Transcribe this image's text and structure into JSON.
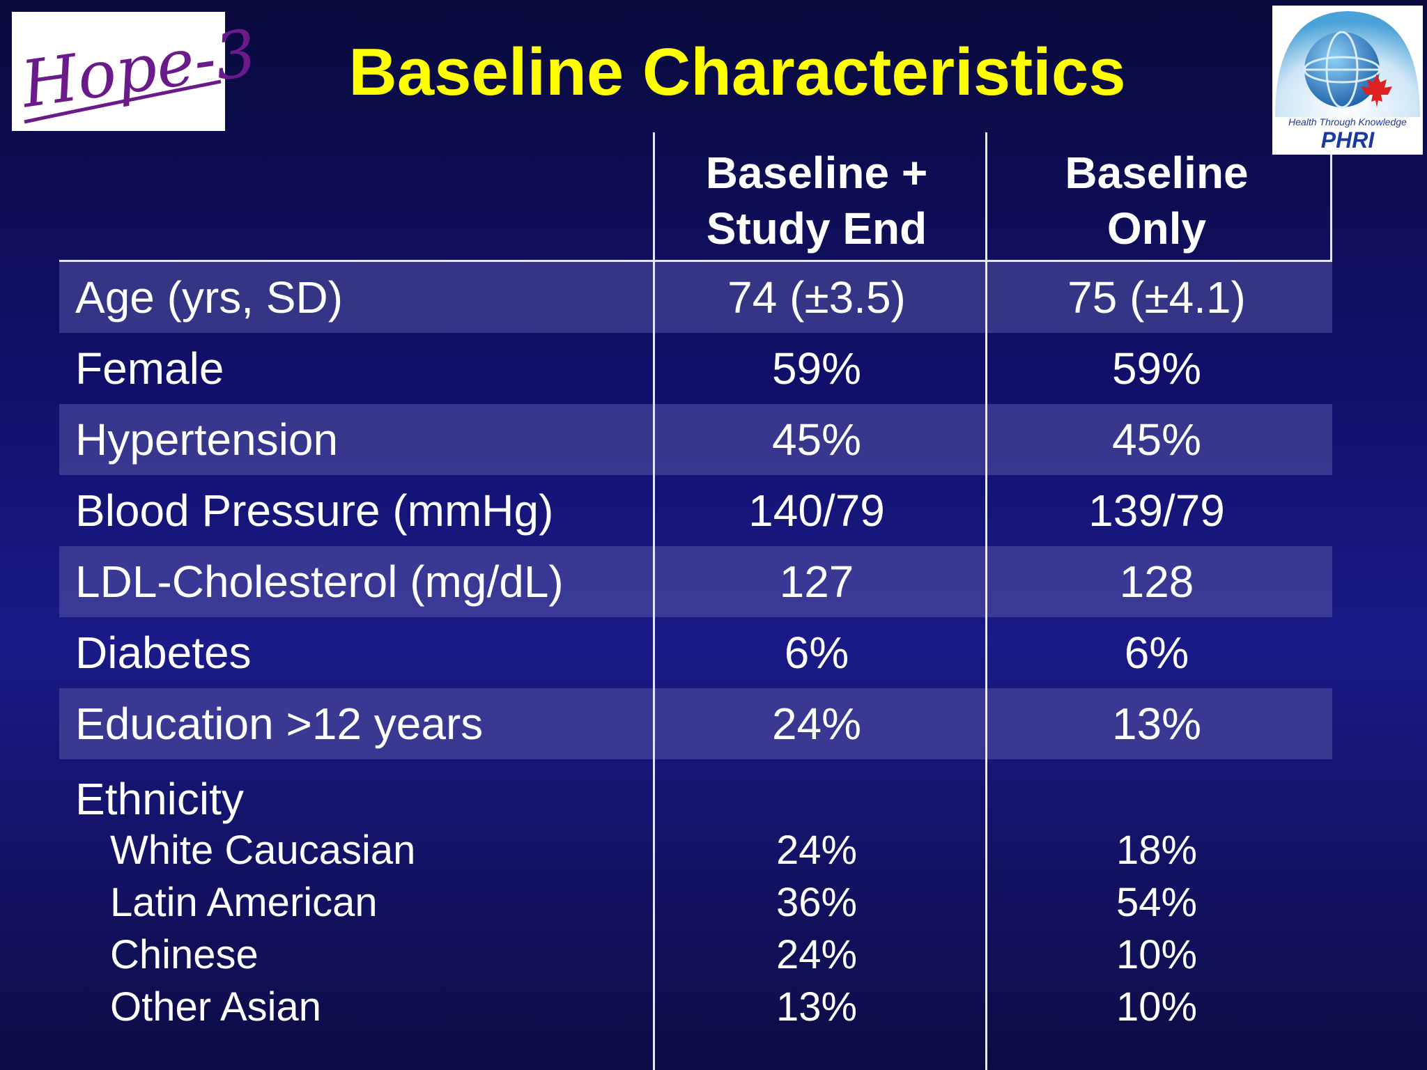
{
  "logo_left": {
    "text": "Hope-3"
  },
  "logo_right": {
    "tagline": "Health Through Knowledge",
    "name": "PHRI"
  },
  "title": "Baseline Characteristics",
  "columns": {
    "col1": {
      "line1": "Baseline +",
      "line2": "Study End"
    },
    "col2": {
      "line1": "Baseline",
      "line2": "Only"
    }
  },
  "rows": [
    {
      "label": "Age (yrs, SD)",
      "col1": "74 (±3.5)",
      "col2": "75 (±4.1)"
    },
    {
      "label": "Female",
      "col1": "59%",
      "col2": "59%"
    },
    {
      "label": "Hypertension",
      "col1": "45%",
      "col2": "45%"
    },
    {
      "label": "Blood Pressure (mmHg)",
      "col1": "140/79",
      "col2": "139/79"
    },
    {
      "label": "LDL-Cholesterol (mg/dL)",
      "col1": "127",
      "col2": "128"
    },
    {
      "label": "Diabetes",
      "col1": "6%",
      "col2": "6%"
    },
    {
      "label": "Education >12 years",
      "col1": "24%",
      "col2": "13%"
    }
  ],
  "ethnicity": {
    "title": "Ethnicity",
    "items": [
      {
        "label": "White Caucasian",
        "col1": "24%",
        "col2": "18%"
      },
      {
        "label": "Latin American",
        "col1": "36%",
        "col2": "54%"
      },
      {
        "label": "Chinese",
        "col1": "24%",
        "col2": "10%"
      },
      {
        "label": "Other Asian",
        "col1": "13%",
        "col2": "10%"
      }
    ]
  },
  "colors": {
    "title": "#ffff00",
    "logo_text": "#6a1a8a",
    "phri_text": "#1a3aa0",
    "maple_leaf": "#e02020"
  }
}
